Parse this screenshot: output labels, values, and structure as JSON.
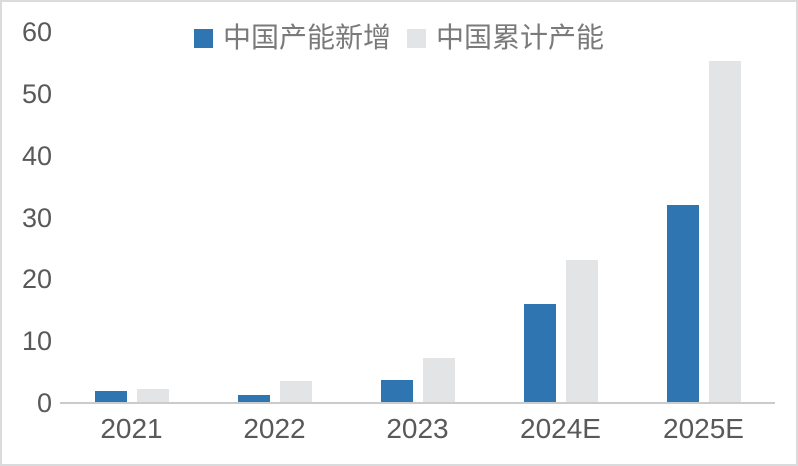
{
  "chart_data": {
    "type": "bar",
    "title": "",
    "xlabel": "",
    "ylabel": "",
    "categories": [
      "2021",
      "2022",
      "2023",
      "2024E",
      "2025E"
    ],
    "series": [
      {
        "name": "中国产能新增",
        "color": "#2e75b2",
        "values": [
          2,
          1.3,
          3.7,
          16,
          32
        ]
      },
      {
        "name": "中国累计产能",
        "color": "#e3e4e6",
        "values": [
          2.3,
          3.5,
          7.2,
          23.2,
          55.3
        ]
      }
    ],
    "ylim": [
      0,
      60
    ],
    "yticks": [
      0,
      10,
      20,
      30,
      40,
      50,
      60
    ],
    "grid": false,
    "legend_position": "top-center",
    "colors": {
      "axis_line": "#c9cbcd",
      "tick_text": "#595959",
      "legend_text": "#7a7a7a",
      "frame_border": "#d9dbdc",
      "background": "#ffffff"
    }
  }
}
